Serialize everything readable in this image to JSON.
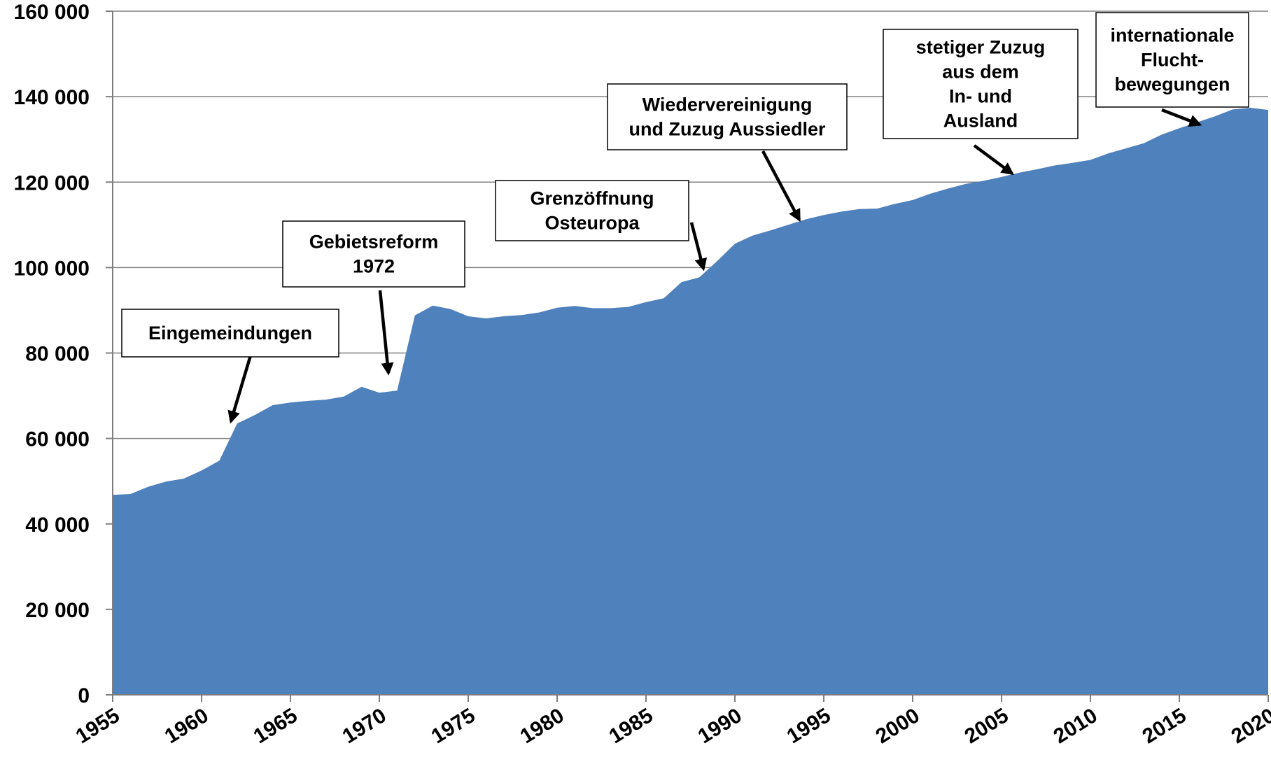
{
  "chart_data": {
    "type": "area",
    "title": "",
    "xlabel": "",
    "ylabel": "",
    "xlim": [
      1955,
      2020
    ],
    "ylim": [
      0,
      160000
    ],
    "grid": true,
    "color": "#4f81bd",
    "x_ticks": [
      "1955",
      "1960",
      "1965",
      "1970",
      "1975",
      "1980",
      "1985",
      "1990",
      "1995",
      "2000",
      "2005",
      "2010",
      "2015",
      "2020"
    ],
    "y_ticks": [
      "0",
      "20 000",
      "40 000",
      "60 000",
      "80 000",
      "100 000",
      "120 000",
      "140 000",
      "160 000"
    ],
    "series": [
      {
        "x": [
          1955,
          1956,
          1957,
          1958,
          1959,
          1960,
          1961,
          1962,
          1963,
          1964,
          1965,
          1966,
          1967,
          1968,
          1969,
          1970,
          1971,
          1972,
          1973,
          1974,
          1975,
          1976,
          1977,
          1978,
          1979,
          1980,
          1981,
          1982,
          1983,
          1984,
          1985,
          1986,
          1987,
          1988,
          1989,
          1990,
          1991,
          1992,
          1993,
          1994,
          1995,
          1996,
          1997,
          1998,
          1999,
          2000,
          2001,
          2002,
          2003,
          2004,
          2005,
          2006,
          2007,
          2008,
          2009,
          2010,
          2011,
          2012,
          2013,
          2014,
          2015,
          2016,
          2017,
          2018,
          2019,
          2020
        ],
        "values": [
          46800,
          47000,
          48700,
          49900,
          50600,
          52500,
          54800,
          63500,
          65500,
          67800,
          68400,
          68800,
          69100,
          69800,
          72100,
          70700,
          71200,
          88800,
          91100,
          90300,
          88600,
          88100,
          88600,
          88900,
          89500,
          90600,
          91000,
          90500,
          90500,
          90800,
          91900,
          92800,
          96600,
          97700,
          101500,
          105600,
          107500,
          108700,
          110000,
          111300,
          112300,
          113100,
          113700,
          113800,
          114900,
          115800,
          117300,
          118500,
          119600,
          120300,
          121200,
          122200,
          123000,
          123900,
          124500,
          125200,
          126700,
          127900,
          129100,
          131100,
          132600,
          134000,
          135400,
          137000,
          137400,
          136900
        ]
      }
    ],
    "annotations": [
      {
        "lines": [
          "Eingemeindungen"
        ]
      },
      {
        "lines": [
          "Gebietsreform",
          "1972"
        ]
      },
      {
        "lines": [
          "Grenzöffnung",
          "Osteuropa"
        ]
      },
      {
        "lines": [
          "Wiedervereinigung",
          "und Zuzug Aussiedler"
        ]
      },
      {
        "lines": [
          "stetiger Zuzug",
          "aus dem",
          "In- und",
          "Ausland"
        ]
      },
      {
        "lines": [
          "internationale",
          "Flucht-",
          "bewegungen"
        ]
      }
    ]
  }
}
